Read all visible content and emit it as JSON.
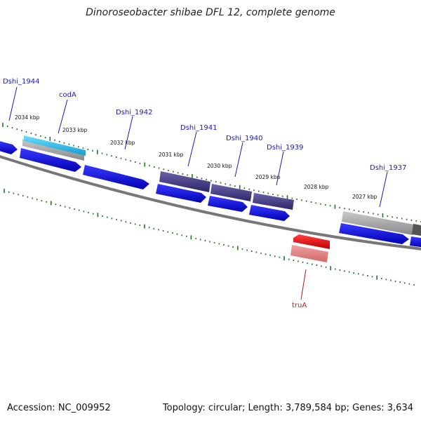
{
  "title": "Dinoroseobacter shibae DFL 12, complete genome",
  "accession": "Accession: NC_009952",
  "summary": "Topology: circular; Length: 3,789,584 bp; Genes: 3,634",
  "colors": {
    "backbone": "#777777",
    "cds": "#1a1ae6",
    "cds_dark": "#4a3f8a",
    "gene_grey": "#aaaaaa",
    "gene_cyan": "#22b8e6",
    "rna_red": "#e60000",
    "rna_pink": "#e68080",
    "tick": "#1a7a1a",
    "label_blue": "#1a1ab3",
    "label_red": "#b31a1a"
  },
  "ticks": [
    {
      "label": "2034 kbp"
    },
    {
      "label": "2033 kbp"
    },
    {
      "label": "2032 kbp"
    },
    {
      "label": "2031 kbp"
    },
    {
      "label": "2030 kbp"
    },
    {
      "label": "2029 kbp"
    },
    {
      "label": "2028 kbp"
    },
    {
      "label": "2027 kbp"
    }
  ],
  "gene_labels": [
    {
      "name": "Dshi_1944",
      "color": "blue"
    },
    {
      "name": "codA",
      "color": "blue"
    },
    {
      "name": "Dshi_1942",
      "color": "blue"
    },
    {
      "name": "Dshi_1941",
      "color": "blue"
    },
    {
      "name": "Dshi_1940",
      "color": "blue"
    },
    {
      "name": "Dshi_1939",
      "color": "blue"
    },
    {
      "name": "Dshi_1937",
      "color": "blue"
    },
    {
      "name": "truA",
      "color": "red"
    }
  ]
}
